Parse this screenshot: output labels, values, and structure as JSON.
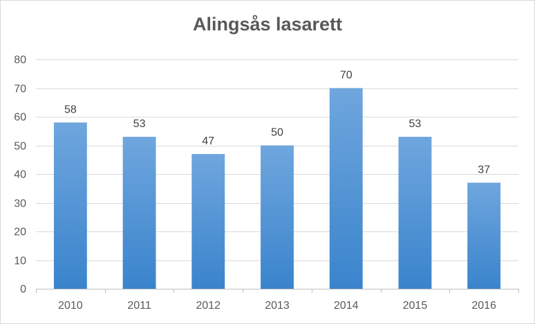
{
  "chart_data": {
    "type": "bar",
    "title": "Alingsås lasarett",
    "xlabel": "",
    "ylabel": "",
    "categories": [
      "2010",
      "2011",
      "2012",
      "2013",
      "2014",
      "2015",
      "2016"
    ],
    "values": [
      58,
      53,
      47,
      50,
      70,
      53,
      37
    ],
    "ylim": [
      0,
      80
    ],
    "yticks": [
      0,
      10,
      20,
      30,
      40,
      50,
      60,
      70,
      80
    ],
    "grid": true,
    "legend": "none",
    "data_labels": true,
    "colors": {
      "bar_top": "#6fa6de",
      "bar_bottom": "#3a84cc",
      "grid": "#d9d9d9",
      "axis": "#bfbfbf",
      "text": "#595959"
    }
  }
}
